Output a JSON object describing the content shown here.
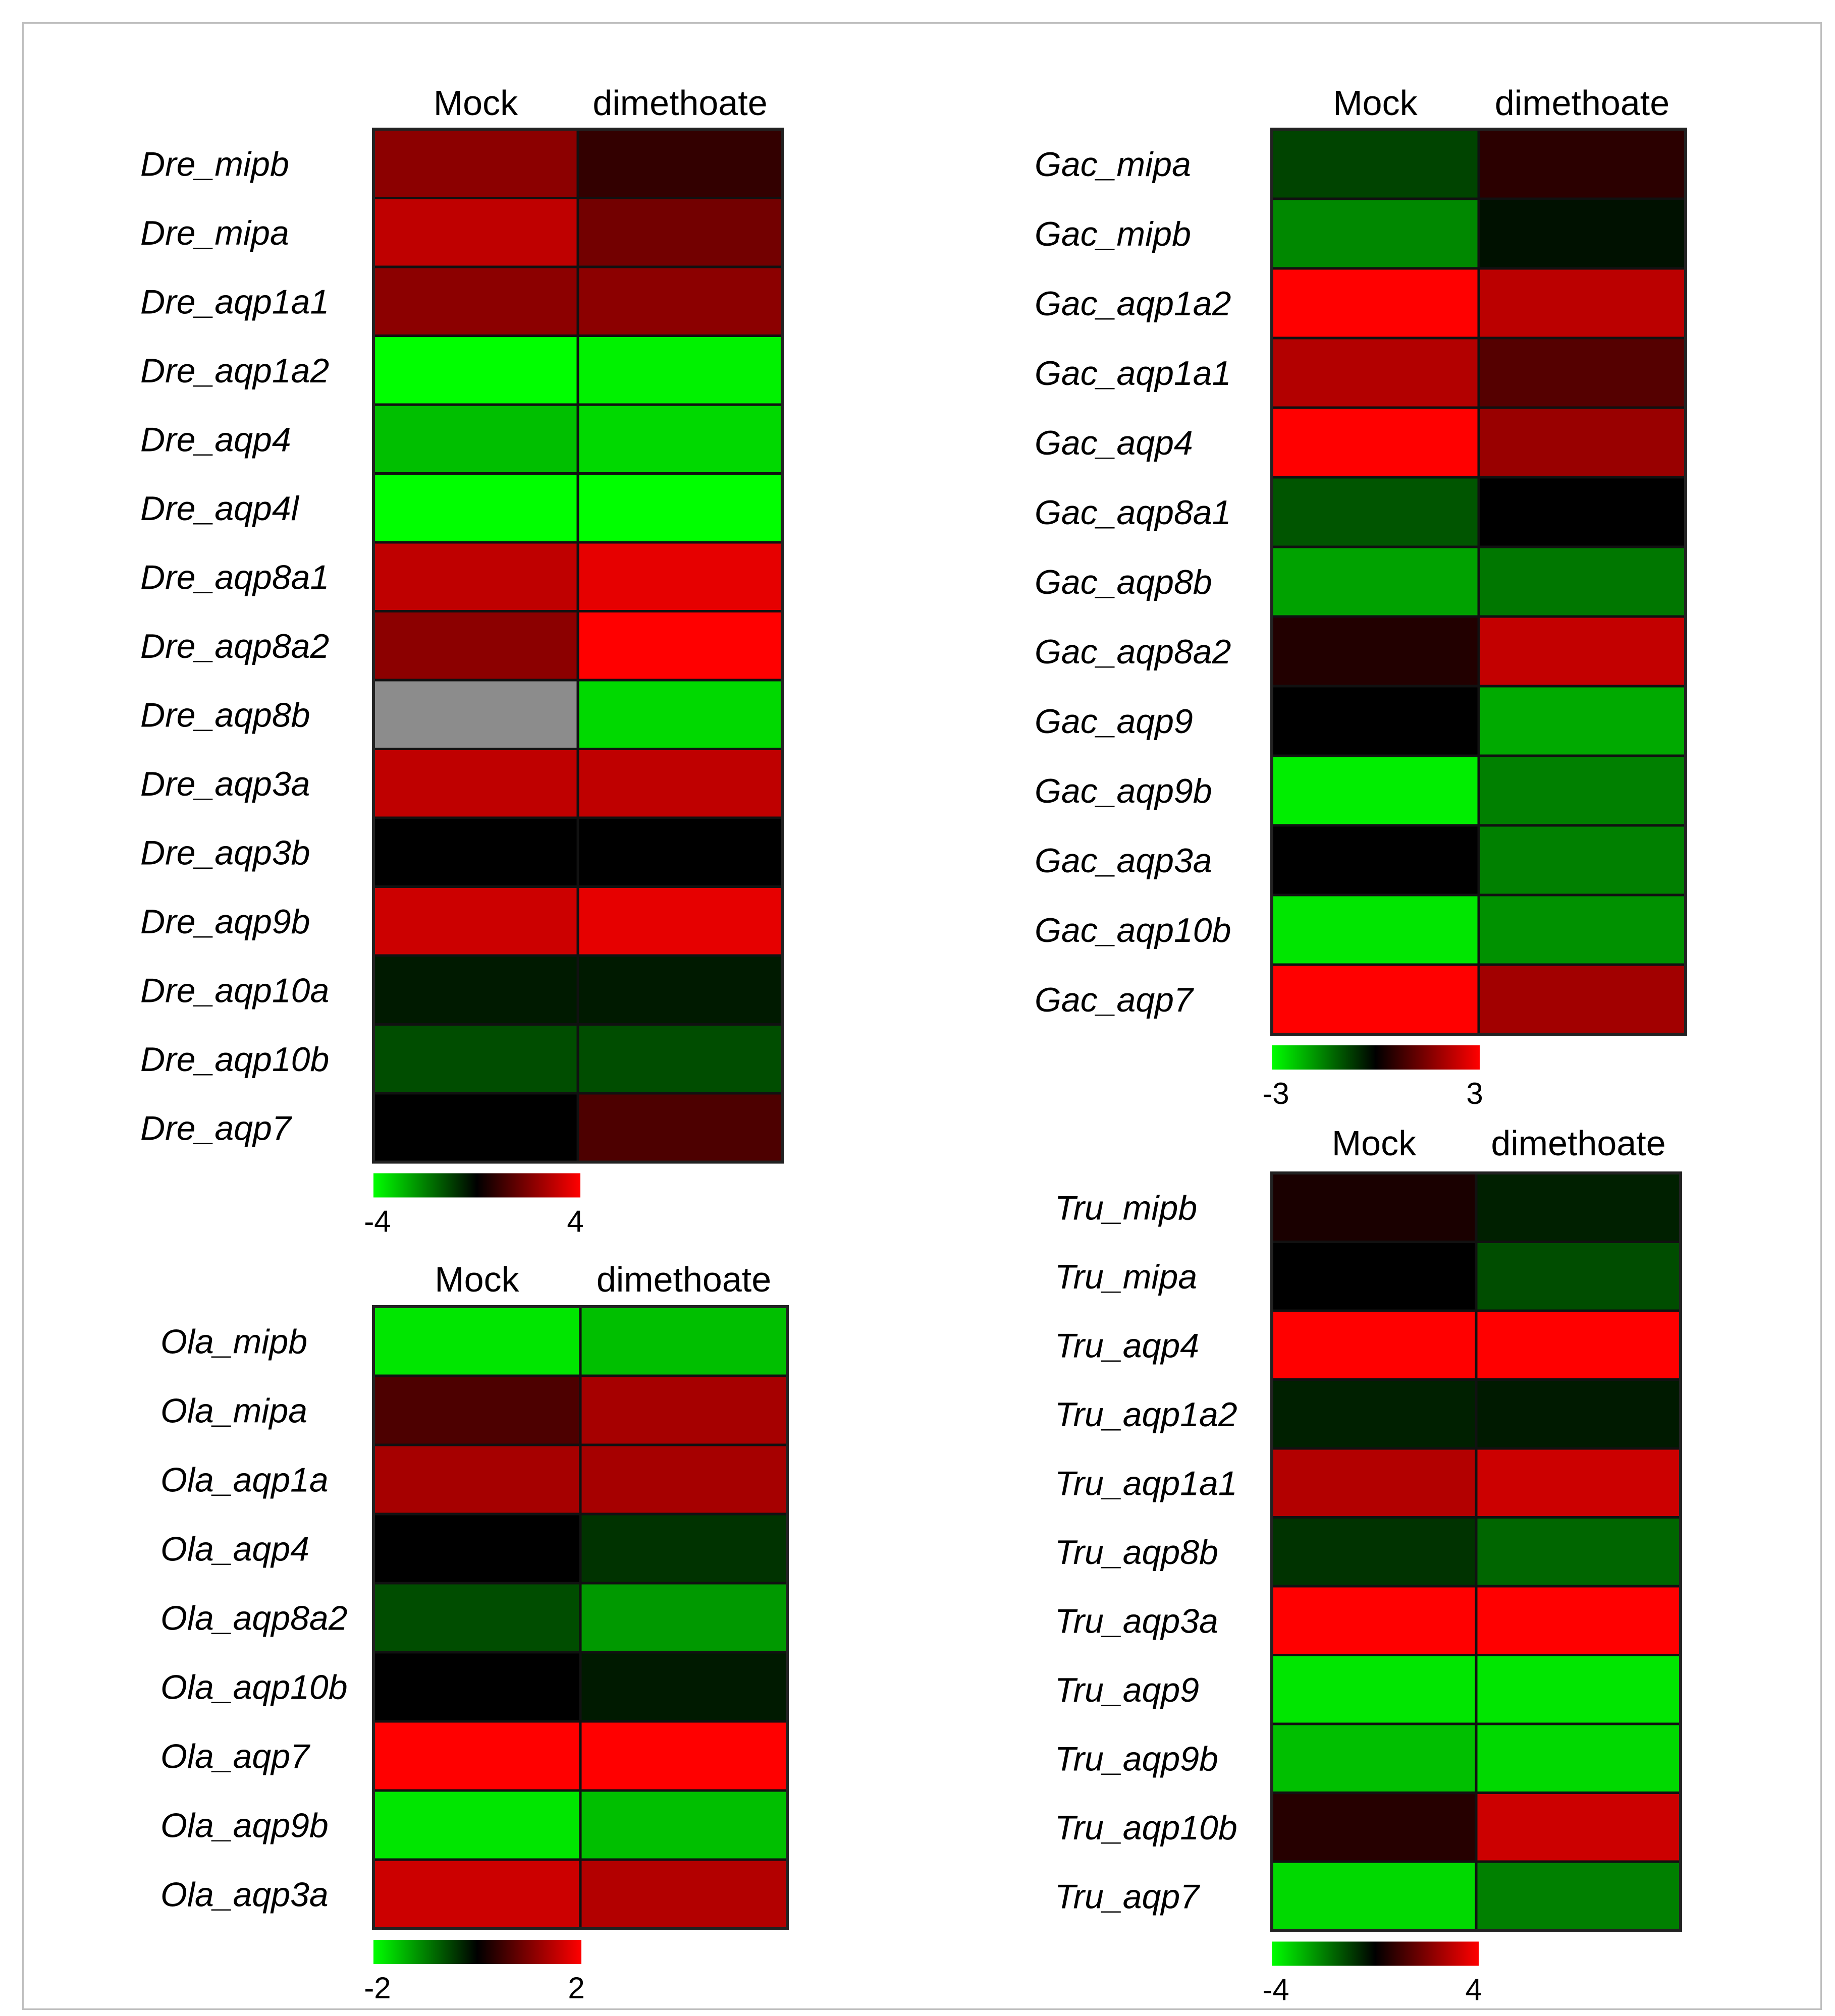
{
  "chart_data": [
    {
      "type": "heatmap",
      "columns": [
        "Mock",
        "dimethoate"
      ],
      "rows": [
        "Dre_mipb",
        "Dre_mipa",
        "Dre_aqp1a1",
        "Dre_aqp1a2",
        "Dre_aqp4",
        "Dre_aqp4l",
        "Dre_aqp8a1",
        "Dre_aqp8a2",
        "Dre_aqp8b",
        "Dre_aqp3a",
        "Dre_aqp3b",
        "Dre_aqp9b",
        "Dre_aqp10a",
        "Dre_aqp10b",
        "Dre_aqp7"
      ],
      "values": [
        [
          2.2,
          0.8
        ],
        [
          3.0,
          1.8
        ],
        [
          2.2,
          2.2
        ],
        [
          -4,
          -3.8
        ],
        [
          -3.0,
          -3.4
        ],
        [
          -4,
          -4
        ],
        [
          3.0,
          3.6
        ],
        [
          2.2,
          4
        ],
        [
          null,
          -3.4
        ],
        [
          3.0,
          3.0
        ],
        [
          0,
          0
        ],
        [
          3.2,
          3.6
        ],
        [
          -0.4,
          -0.4
        ],
        [
          -1.2,
          -1.2
        ],
        [
          0,
          1.2
        ]
      ],
      "scale": {
        "min": -4,
        "max": 4,
        "min_label": "-4",
        "max_label": "4",
        "low_color": "#00ff00",
        "mid_color": "#000000",
        "high_color": "#ff0000",
        "missing_color": "#8c8c8c"
      }
    },
    {
      "type": "heatmap",
      "columns": [
        "Mock",
        "dimethoate"
      ],
      "rows": [
        "Gac_mipa",
        "Gac_mipb",
        "Gac_aqp1a2",
        "Gac_aqp1a1",
        "Gac_aqp4",
        "Gac_aqp8a1",
        "Gac_aqp8b",
        "Gac_aqp8a2",
        "Gac_aqp9",
        "Gac_aqp9b",
        "Gac_aqp3a",
        "Gac_aqp10b",
        "Gac_aqp7"
      ],
      "values": [
        [
          -0.8,
          0.5
        ],
        [
          -1.6,
          -0.2
        ],
        [
          3,
          2.2
        ],
        [
          2.1,
          1.0
        ],
        [
          3,
          1.8
        ],
        [
          -1.0,
          0
        ],
        [
          -1.9,
          -1.4
        ],
        [
          0.4,
          2.3
        ],
        [
          0,
          -2.0
        ],
        [
          -2.8,
          -1.5
        ],
        [
          0,
          -1.5
        ],
        [
          -2.7,
          -1.7
        ],
        [
          3,
          1.9
        ]
      ],
      "scale": {
        "min": -3,
        "max": 3,
        "min_label": "-3",
        "max_label": "3",
        "low_color": "#00ff00",
        "mid_color": "#000000",
        "high_color": "#ff0000",
        "missing_color": "#8c8c8c"
      }
    },
    {
      "type": "heatmap",
      "columns": [
        "Mock",
        "dimethoate"
      ],
      "rows": [
        "Ola_mipb",
        "Ola_mipa",
        "Ola_aqp1a",
        "Ola_aqp4",
        "Ola_aqp8a2",
        "Ola_aqp10b",
        "Ola_aqp7",
        "Ola_aqp9b",
        "Ola_aqp3a"
      ],
      "values": [
        [
          -1.8,
          -1.5
        ],
        [
          0.6,
          1.3
        ],
        [
          1.3,
          1.3
        ],
        [
          0,
          -0.4
        ],
        [
          -0.6,
          -1.2
        ],
        [
          0,
          -0.2
        ],
        [
          2,
          2
        ],
        [
          -1.8,
          -1.5
        ],
        [
          1.6,
          1.4
        ]
      ],
      "scale": {
        "min": -2,
        "max": 2,
        "min_label": "-2",
        "max_label": "2",
        "low_color": "#00ff00",
        "mid_color": "#000000",
        "high_color": "#ff0000",
        "missing_color": "#8c8c8c"
      }
    },
    {
      "type": "heatmap",
      "columns": [
        "Mock",
        "dimethoate"
      ],
      "rows": [
        "Tru_mipb",
        "Tru_mipa",
        "Tru_aqp4",
        "Tru_aqp1a2",
        "Tru_aqp1a1",
        "Tru_aqp8b",
        "Tru_aqp3a",
        "Tru_aqp9",
        "Tru_aqp9b",
        "Tru_aqp10b",
        "Tru_aqp7"
      ],
      "values": [
        [
          0.4,
          -0.5
        ],
        [
          0,
          -1.2
        ],
        [
          4,
          4
        ],
        [
          -0.5,
          -0.4
        ],
        [
          2.8,
          3.2
        ],
        [
          -0.8,
          -1.6
        ],
        [
          4,
          4
        ],
        [
          -3.6,
          -3.6
        ],
        [
          -3.0,
          -3.4
        ],
        [
          0.6,
          3.2
        ],
        [
          -3.4,
          -2.0
        ]
      ],
      "scale": {
        "min": -4,
        "max": 4,
        "min_label": "-4",
        "max_label": "4",
        "low_color": "#00ff00",
        "mid_color": "#000000",
        "high_color": "#ff0000",
        "missing_color": "#8c8c8c"
      }
    }
  ]
}
